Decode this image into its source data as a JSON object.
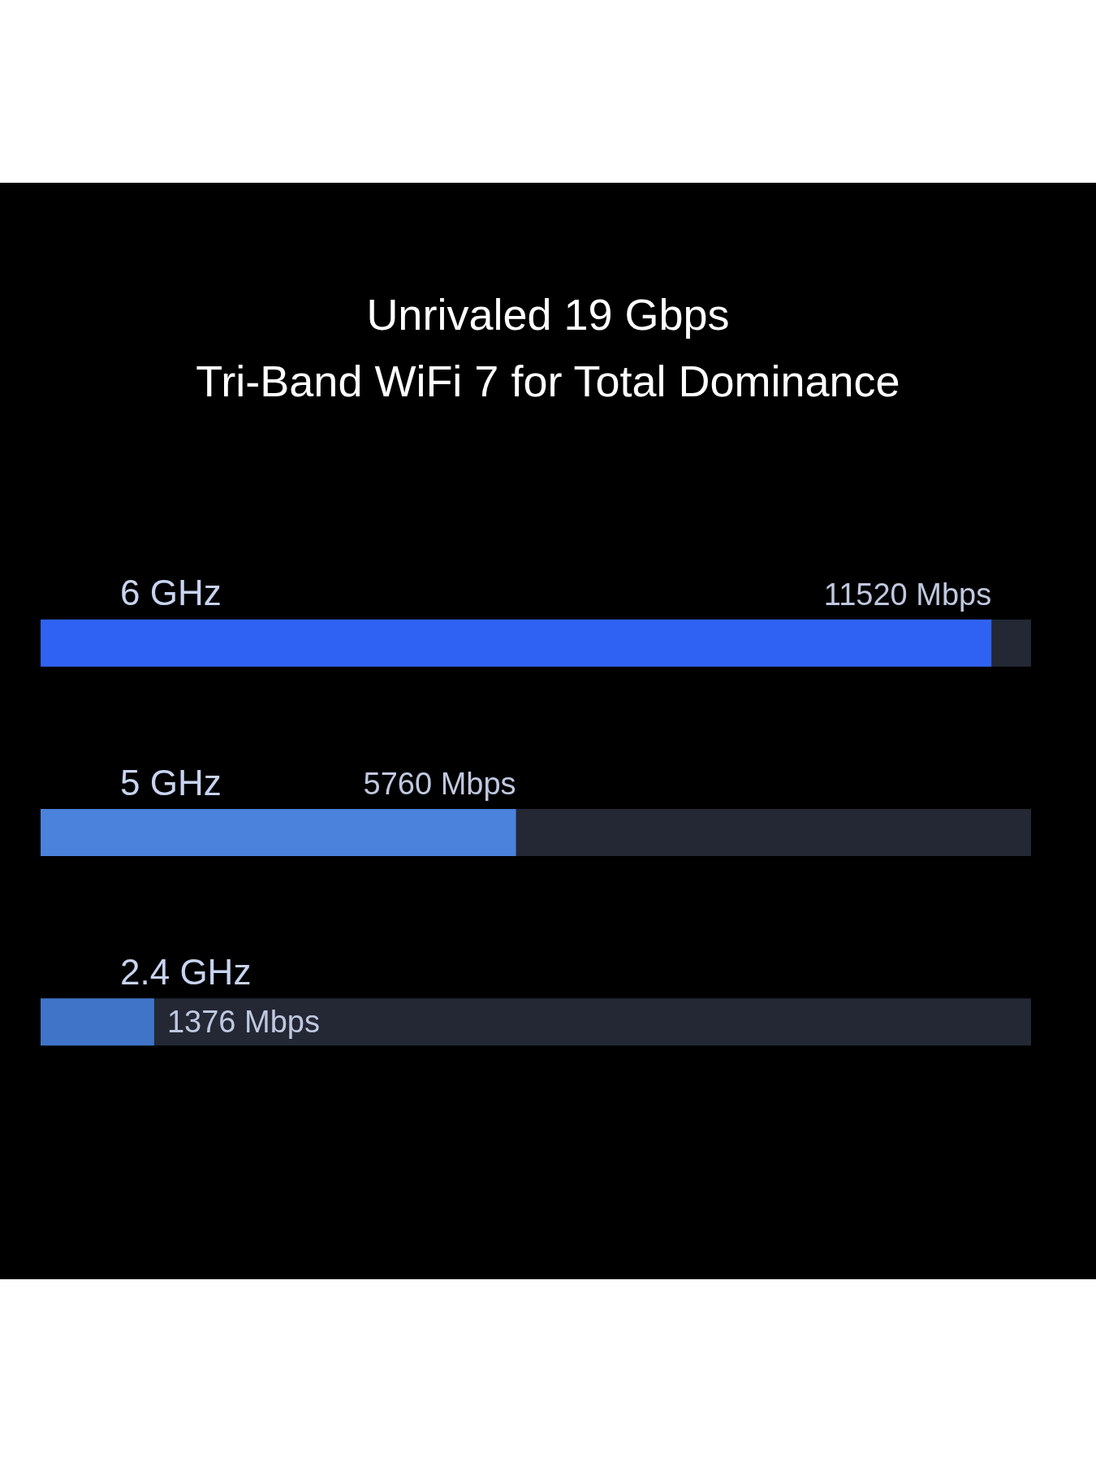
{
  "chart_data": {
    "type": "bar",
    "orientation": "horizontal",
    "title": "Unrivaled 19 Gbps",
    "subtitle": "Tri-Band WiFi 7 for Total Dominance",
    "categories": [
      "6 GHz",
      "5 GHz",
      "2.4 GHz"
    ],
    "values": [
      11520,
      5760,
      1376
    ],
    "colors": [
      "#2f62f2",
      "#4a82dc",
      "#3f74c8"
    ],
    "value_labels": [
      "11520 Mbps",
      "5760 Mbps",
      "1376 Mbps"
    ],
    "tick_labels": "y"
  }
}
